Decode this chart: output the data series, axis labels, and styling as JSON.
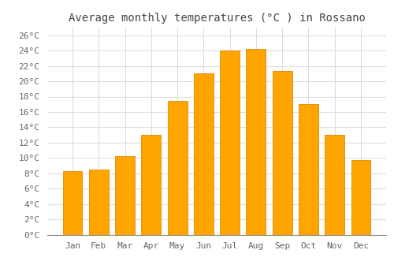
{
  "title": "Average monthly temperatures (°C ) in Rossano",
  "months": [
    "Jan",
    "Feb",
    "Mar",
    "Apr",
    "May",
    "Jun",
    "Jul",
    "Aug",
    "Sep",
    "Oct",
    "Nov",
    "Dec"
  ],
  "values": [
    8.3,
    8.5,
    10.2,
    13.0,
    17.4,
    21.0,
    24.0,
    24.2,
    21.3,
    17.0,
    13.0,
    9.7
  ],
  "bar_color": "#FFA500",
  "bar_edge_color": "#E08800",
  "ylim": [
    0,
    27
  ],
  "yticks": [
    0,
    2,
    4,
    6,
    8,
    10,
    12,
    14,
    16,
    18,
    20,
    22,
    24,
    26
  ],
  "background_color": "#FFFFFF",
  "grid_color": "#DDDDDD",
  "title_fontsize": 10,
  "tick_fontsize": 8,
  "font_family": "monospace"
}
